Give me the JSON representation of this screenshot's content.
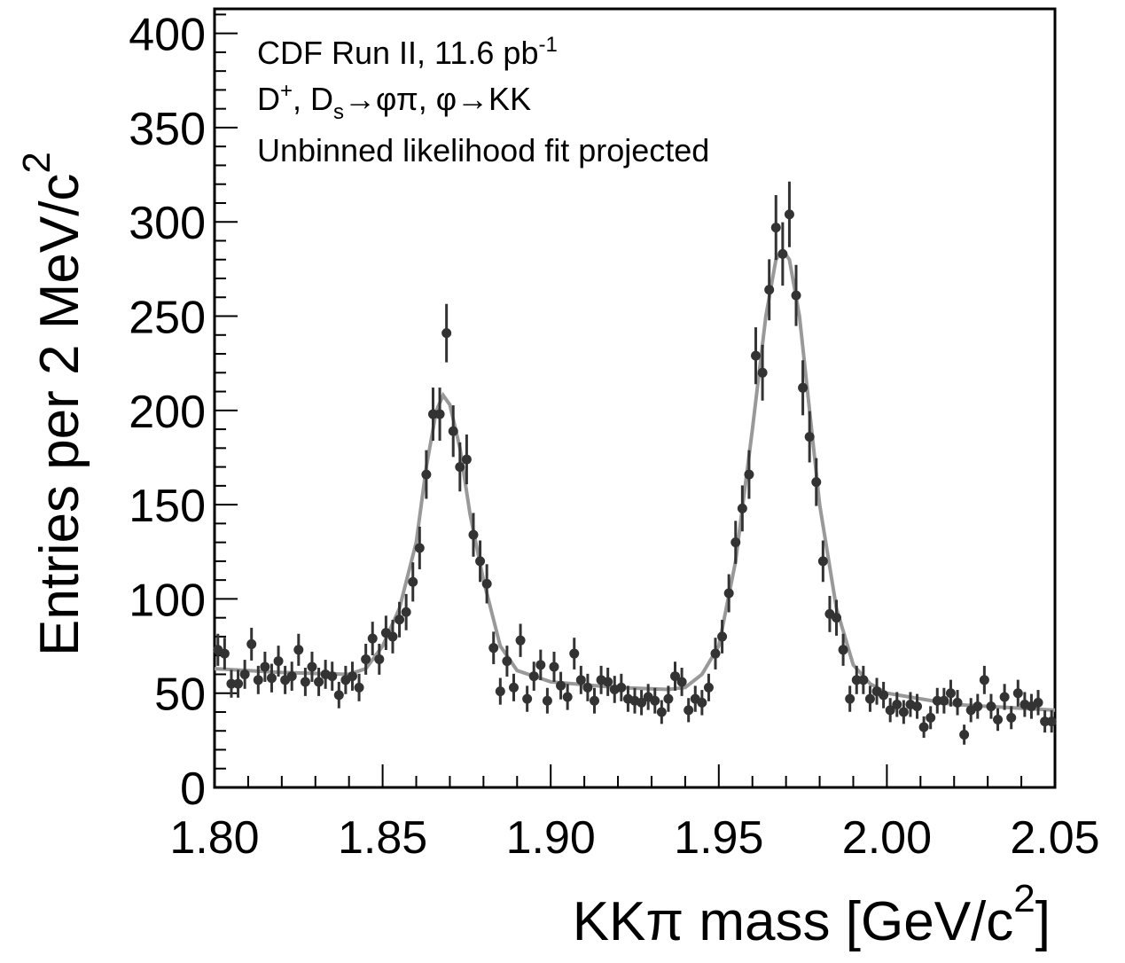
{
  "chart_data": {
    "type": "scatter",
    "annotations": [
      [
        "CDF Run II, 11.6 pb",
        "-1"
      ],
      [
        "D",
        "+",
        ", D",
        "s",
        "→φπ, φ→KK"
      ],
      [
        "Unbinned likelihood fit projected"
      ]
    ],
    "x_label": [
      "KKπ mass [GeV/c",
      "2",
      "]"
    ],
    "y_label": [
      "Entries per 2 MeV/c",
      "2"
    ],
    "xlim": [
      1.8,
      2.05
    ],
    "ylim": [
      0,
      413
    ],
    "xticks": [
      {
        "value": 1.8,
        "label": "1.80"
      },
      1.85,
      {
        "value": 1.9,
        "label": "1.90"
      },
      1.95,
      {
        "value": 2.0,
        "label": "2.00"
      },
      2.05
    ],
    "yticks": [
      0,
      50,
      100,
      150,
      200,
      250,
      300,
      350,
      400
    ],
    "xminorticks": [
      1.81,
      1.82,
      1.83,
      1.84,
      1.86,
      1.87,
      1.88,
      1.89,
      1.91,
      1.92,
      1.93,
      1.94,
      1.96,
      1.97,
      1.98,
      1.99,
      2.01,
      2.02,
      2.03,
      2.04
    ],
    "yminorticks": [
      10,
      20,
      30,
      40,
      60,
      70,
      80,
      90,
      110,
      120,
      130,
      140,
      160,
      170,
      180,
      190,
      210,
      220,
      230,
      240,
      260,
      270,
      280,
      290,
      310,
      320,
      330,
      340,
      360,
      370,
      380,
      390,
      410
    ],
    "series": [
      {
        "type": "errorbar",
        "color": "#333333",
        "x": [
          1.801,
          1.803,
          1.805,
          1.807,
          1.809,
          1.811,
          1.813,
          1.815,
          1.817,
          1.819,
          1.821,
          1.823,
          1.825,
          1.827,
          1.829,
          1.831,
          1.833,
          1.835,
          1.837,
          1.839,
          1.841,
          1.843,
          1.845,
          1.847,
          1.849,
          1.851,
          1.853,
          1.855,
          1.857,
          1.859,
          1.861,
          1.863,
          1.865,
          1.867,
          1.869,
          1.871,
          1.873,
          1.875,
          1.877,
          1.879,
          1.881,
          1.883,
          1.885,
          1.887,
          1.889,
          1.891,
          1.893,
          1.895,
          1.897,
          1.899,
          1.901,
          1.903,
          1.905,
          1.907,
          1.909,
          1.911,
          1.913,
          1.915,
          1.917,
          1.919,
          1.921,
          1.923,
          1.925,
          1.927,
          1.929,
          1.931,
          1.933,
          1.935,
          1.937,
          1.939,
          1.941,
          1.943,
          1.945,
          1.947,
          1.949,
          1.951,
          1.953,
          1.955,
          1.957,
          1.959,
          1.961,
          1.963,
          1.965,
          1.967,
          1.969,
          1.971,
          1.973,
          1.975,
          1.977,
          1.979,
          1.981,
          1.983,
          1.985,
          1.987,
          1.989,
          1.991,
          1.993,
          1.995,
          1.997,
          1.999,
          2.001,
          2.003,
          2.005,
          2.007,
          2.009,
          2.011,
          2.013,
          2.015,
          2.017,
          2.019,
          2.021,
          2.023,
          2.025,
          2.027,
          2.029,
          2.031,
          2.033,
          2.035,
          2.037,
          2.039,
          2.041,
          2.043,
          2.045,
          2.047,
          2.049
        ],
        "values": [
          73,
          71,
          55,
          55,
          60,
          76,
          57,
          64,
          58,
          67,
          57,
          59,
          73,
          56,
          64,
          56,
          60,
          59,
          49,
          57,
          59,
          53,
          68,
          79,
          68,
          82,
          80,
          89,
          93,
          109,
          127,
          166,
          198,
          198,
          241,
          189,
          170,
          174,
          134,
          120,
          108,
          74,
          51,
          67,
          53,
          78,
          47,
          59,
          65,
          46,
          64,
          54,
          48,
          71,
          57,
          53,
          46,
          57,
          56,
          52,
          53,
          47,
          46,
          45,
          48,
          46,
          40,
          47,
          59,
          56,
          41,
          47,
          45,
          53,
          71,
          80,
          103,
          130,
          148,
          166,
          229,
          220,
          264,
          297,
          283,
          304,
          261,
          212,
          186,
          162,
          120,
          92,
          90,
          73,
          47,
          57,
          57,
          47,
          51,
          49,
          41,
          44,
          40,
          44,
          43,
          32,
          37,
          46,
          46,
          50,
          45,
          28,
          41,
          43,
          57,
          43,
          36,
          48,
          37,
          50,
          44,
          43,
          45,
          35,
          35
        ],
        "errors": [
          8.5,
          8.4,
          7.4,
          7.4,
          7.7,
          8.7,
          7.5,
          8.0,
          7.6,
          8.2,
          7.5,
          7.7,
          8.5,
          7.5,
          8.0,
          7.5,
          7.7,
          7.7,
          7.0,
          7.5,
          7.7,
          7.3,
          8.2,
          8.9,
          8.2,
          9.1,
          8.9,
          9.4,
          9.6,
          10.4,
          11.3,
          12.9,
          14.1,
          14.1,
          15.5,
          13.7,
          13.0,
          13.2,
          11.6,
          11.0,
          10.4,
          8.6,
          7.1,
          8.2,
          7.3,
          8.8,
          6.9,
          7.7,
          8.1,
          6.8,
          8.0,
          7.3,
          6.9,
          8.4,
          7.5,
          7.3,
          6.8,
          7.5,
          7.5,
          7.2,
          7.3,
          6.9,
          6.8,
          6.7,
          6.9,
          6.8,
          6.3,
          6.9,
          7.7,
          7.5,
          6.4,
          6.9,
          6.7,
          7.3,
          8.4,
          8.9,
          10.1,
          11.4,
          12.2,
          12.9,
          15.1,
          14.8,
          16.2,
          17.2,
          16.8,
          17.4,
          16.2,
          14.6,
          13.6,
          12.7,
          11.0,
          9.6,
          9.5,
          8.5,
          6.9,
          7.5,
          7.5,
          6.9,
          7.1,
          7.0,
          6.4,
          6.6,
          6.3,
          6.6,
          6.6,
          5.7,
          6.1,
          6.8,
          6.8,
          7.1,
          6.7,
          5.3,
          6.4,
          6.6,
          7.5,
          6.6,
          6.0,
          6.9,
          6.1,
          7.1,
          6.6,
          6.6,
          6.7,
          5.9,
          5.9
        ]
      },
      {
        "type": "line",
        "color": "#999999",
        "x": [
          1.8,
          1.82,
          1.84,
          1.845,
          1.85,
          1.855,
          1.86,
          1.863,
          1.866,
          1.868,
          1.87,
          1.873,
          1.876,
          1.88,
          1.885,
          1.89,
          1.9,
          1.92,
          1.935,
          1.94,
          1.945,
          1.95,
          1.955,
          1.96,
          1.964,
          1.967,
          1.969,
          1.971,
          1.974,
          1.977,
          1.98,
          1.985,
          1.99,
          1.995,
          2.0,
          2.02,
          2.05
        ],
        "values": [
          63,
          61,
          60,
          63,
          75,
          95,
          130,
          170,
          200,
          208,
          203,
          180,
          145,
          110,
          75,
          62,
          56,
          53,
          52,
          53,
          60,
          75,
          120,
          190,
          250,
          280,
          285,
          280,
          250,
          200,
          150,
          95,
          65,
          55,
          50,
          44,
          41
        ]
      }
    ]
  }
}
